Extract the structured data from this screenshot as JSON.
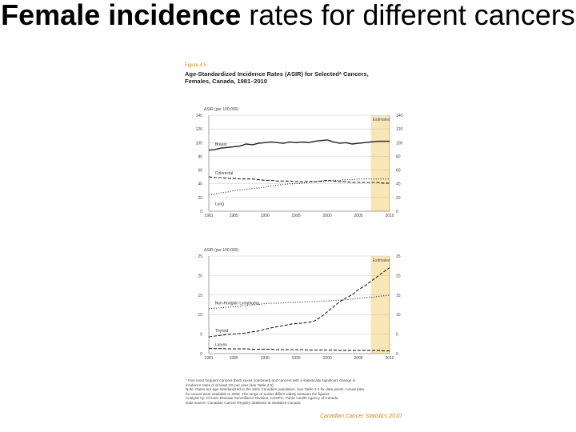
{
  "slide": {
    "title_bold": "Female incidence",
    "title_rest": " rates for different cancers"
  },
  "figure": {
    "label": "Figure 4.5",
    "heading_line1": "Age-Standardized Incidence Rates (ASIR) for Selected* Cancers,",
    "heading_line2": "Females, Canada, 1981–2010",
    "footnotes": [
      "* Five most frequent cancers (both sexes combined) and cancers with a statistically significant change in",
      "  incidence rates of at least 2% per year (see Table 4.6).",
      "Note: Rates are age-standardized to the 1991 Canadian population. See Table 4.3 for data points. Actual data",
      "for cancer were available to 2006. The range of scales differs widely between the figures.",
      "Analysis by: Chronic Disease Surveillance Division, CCDPC, Public Health Agency of Canada",
      "Data source: Canadian Cancer Registry database at Statistics Canada"
    ],
    "credit": "Canadian Cancer Statistics 2010"
  },
  "colors": {
    "projection_shade": "#f8e6b4",
    "line": "#222222",
    "grid": "#c8c8c8",
    "accent": "#c98a12"
  },
  "chart_data": [
    {
      "type": "line",
      "title": "",
      "ylabel": "ASIR (per 100,000)",
      "xlabel": "",
      "xlim": [
        1981,
        2010
      ],
      "ylim": [
        0,
        140
      ],
      "yticks": [
        0,
        20,
        40,
        60,
        80,
        100,
        120,
        140
      ],
      "xticks": [
        1981,
        1985,
        1990,
        1995,
        2000,
        2005,
        2010
      ],
      "projection_start": 2007,
      "projection_label": "Estimated",
      "x": [
        1981,
        1982,
        1983,
        1984,
        1985,
        1986,
        1987,
        1988,
        1989,
        1990,
        1991,
        1992,
        1993,
        1994,
        1995,
        1996,
        1997,
        1998,
        1999,
        2000,
        2001,
        2002,
        2003,
        2004,
        2005,
        2006,
        2007,
        2008,
        2009,
        2010
      ],
      "series": [
        {
          "name": "Breast",
          "style": "solid",
          "values": [
            89,
            90,
            92,
            93,
            94,
            95,
            98,
            97,
            99,
            100,
            101,
            100,
            99,
            101,
            100,
            101,
            100,
            102,
            103,
            104,
            101,
            99,
            100,
            98,
            99,
            100,
            101,
            102,
            102,
            102
          ]
        },
        {
          "name": "Colorectal",
          "style": "dashed",
          "values": [
            50,
            49,
            49,
            48,
            48,
            47,
            47,
            47,
            46,
            45,
            45,
            44,
            44,
            44,
            43,
            43,
            43,
            43,
            44,
            45,
            44,
            43,
            43,
            42,
            42,
            42,
            42,
            42,
            41,
            41
          ]
        },
        {
          "name": "Lung",
          "style": "dotted",
          "values": [
            24,
            25,
            27,
            28,
            30,
            31,
            32,
            33,
            34,
            35,
            37,
            38,
            39,
            40,
            40,
            41,
            42,
            43,
            43,
            44,
            45,
            45,
            46,
            46,
            47,
            47,
            47,
            47,
            47,
            47
          ]
        }
      ]
    },
    {
      "type": "line",
      "title": "",
      "ylabel": "ASIR (per 100,000)",
      "xlabel": "",
      "xlim": [
        1981,
        2010
      ],
      "ylim": [
        0,
        25
      ],
      "yticks": [
        0,
        5,
        10,
        15,
        20,
        25
      ],
      "xticks": [
        1981,
        1985,
        1990,
        1995,
        2000,
        2005,
        2010
      ],
      "projection_start": 2007,
      "projection_label": "Estimated",
      "x": [
        1981,
        1982,
        1983,
        1984,
        1985,
        1986,
        1987,
        1988,
        1989,
        1990,
        1991,
        1992,
        1993,
        1994,
        1995,
        1996,
        1997,
        1998,
        1999,
        2000,
        2001,
        2002,
        2003,
        2004,
        2005,
        2006,
        2007,
        2008,
        2009,
        2010
      ],
      "series": [
        {
          "name": "Non-Hodgkin Lymphoma",
          "style": "dotted",
          "values": [
            11.5,
            11.6,
            11.8,
            11.9,
            12,
            12.1,
            12.3,
            12.5,
            12.6,
            12.8,
            12.9,
            12.9,
            13,
            13.1,
            13.1,
            13.2,
            13.3,
            13.3,
            13.4,
            13.5,
            13.6,
            13.7,
            13.8,
            14,
            14.1,
            14.3,
            14.4,
            14.6,
            14.8,
            15
          ]
        },
        {
          "name": "Thyroid",
          "style": "dashed",
          "values": [
            4.3,
            4.5,
            4.7,
            4.9,
            5,
            5.1,
            5.3,
            5.6,
            5.8,
            6.2,
            6.6,
            6.9,
            7.2,
            7.5,
            7.7,
            7.8,
            8,
            8.4,
            9.4,
            10.7,
            12,
            13.3,
            14.2,
            15.1,
            16.4,
            17.3,
            18.5,
            19.7,
            20.9,
            22
          ]
        },
        {
          "name": "Larynx",
          "style": "dashed",
          "values": [
            1.3,
            1.3,
            1.3,
            1.2,
            1.2,
            1.2,
            1.2,
            1.1,
            1.1,
            1.1,
            1.1,
            1,
            1,
            1,
            1,
            1,
            0.9,
            0.9,
            0.9,
            0.9,
            0.9,
            0.8,
            0.8,
            0.8,
            0.8,
            0.8,
            0.8,
            0.8,
            0.7,
            0.7
          ]
        }
      ]
    }
  ]
}
